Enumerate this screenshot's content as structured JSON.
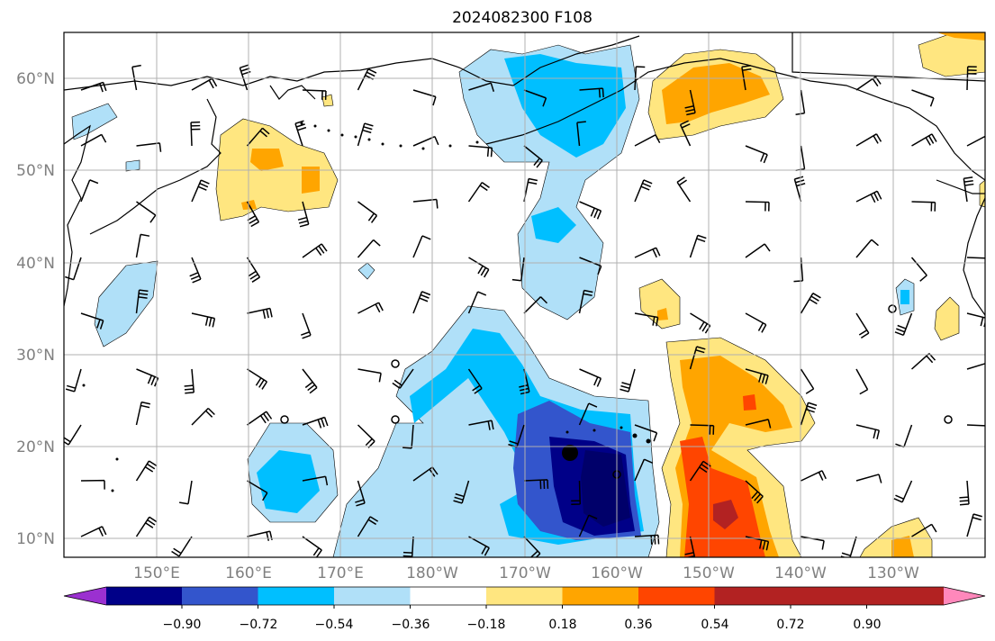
{
  "title": "2024082300 F108",
  "lat_labels": [
    "10°N",
    "20°N",
    "30°N",
    "40°N",
    "50°N",
    "60°N"
  ],
  "lon_labels": [
    "150°E",
    "160°E",
    "170°E",
    "180°W",
    "170°W",
    "160°W",
    "150°W",
    "140°W",
    "130°W"
  ],
  "colorbar": {
    "tick_labels": [
      "−0.90",
      "−0.72",
      "−0.54",
      "−0.36",
      "−0.18",
      "0.18",
      "0.36",
      "0.54",
      "0.72",
      "0.90"
    ],
    "colors": [
      "#9b30d0",
      "#000088",
      "#3355cc",
      "#00bfff",
      "#b0e0f8",
      "#ffffff",
      "#ffe680",
      "#ffa500",
      "#ff4500",
      "#b22222",
      "#ff88bb"
    ]
  },
  "palette": {
    "land": "#000000",
    "grid": "#b0b0b0"
  },
  "stations": [
    {
      "symbol": "filled-circle"
    },
    {
      "symbol": "open-circle"
    }
  ]
}
